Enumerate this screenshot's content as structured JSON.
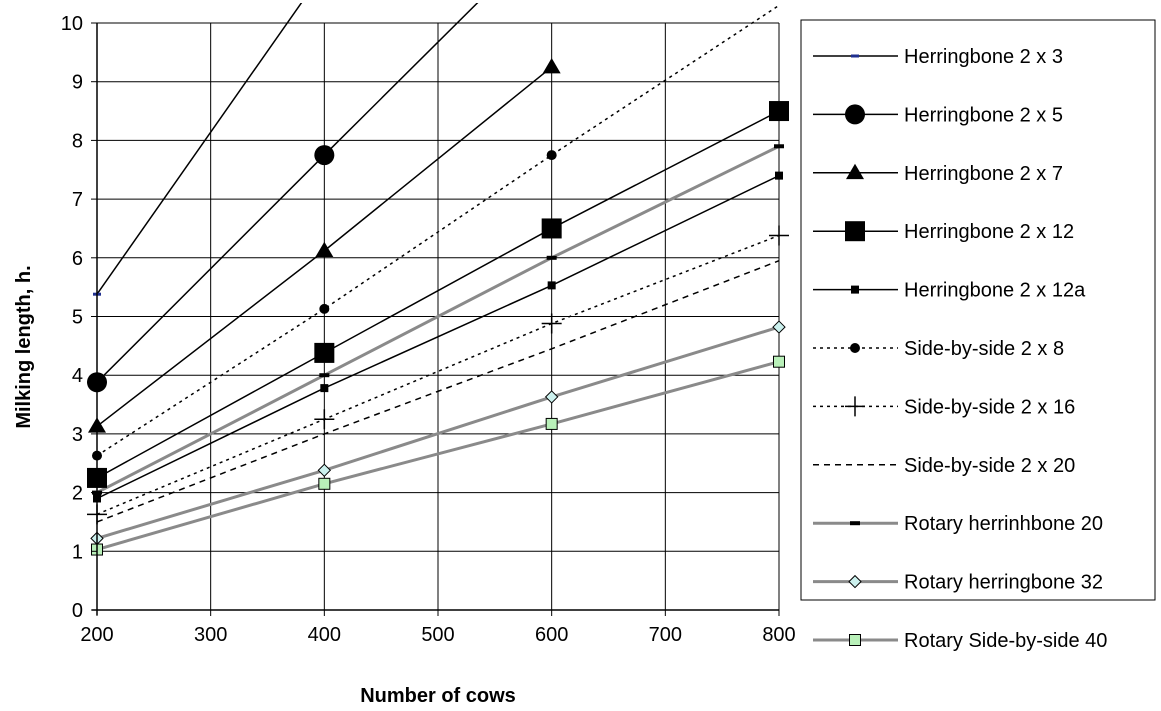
{
  "chart_data": {
    "type": "line",
    "title": "",
    "xlabel": "Number of cows",
    "ylabel": "Milking length, h.",
    "xlim": [
      200,
      800
    ],
    "ylim": [
      0,
      10
    ],
    "xticks": [
      "200",
      "300",
      "400",
      "500",
      "600",
      "700",
      "800"
    ],
    "yticks": [
      "0",
      "1",
      "2",
      "3",
      "4",
      "5",
      "6",
      "7",
      "8",
      "9",
      "10"
    ],
    "grid": true,
    "legend_position": "right",
    "series": [
      {
        "name": "Herringbone 2 x 3",
        "x": [
          200,
          400
        ],
        "y": [
          5.38,
          10.9
        ],
        "line": "solid",
        "color": "#000000",
        "marker": "dash",
        "marker_color": "#1f2f8f"
      },
      {
        "name": "Herringbone 2 x 5",
        "x": [
          200,
          400,
          600
        ],
        "y": [
          3.88,
          7.75,
          11.6
        ],
        "line": "solid",
        "color": "#000000",
        "marker": "circle-large"
      },
      {
        "name": "Herringbone 2 x 7",
        "x": [
          200,
          400,
          600
        ],
        "y": [
          3.13,
          6.12,
          9.25
        ],
        "line": "solid",
        "color": "#000000",
        "marker": "triangle"
      },
      {
        "name": "Herringbone 2 x 12",
        "x": [
          200,
          400,
          600,
          800
        ],
        "y": [
          2.25,
          4.38,
          6.5,
          8.5
        ],
        "line": "solid",
        "color": "#000000",
        "marker": "square-large"
      },
      {
        "name": "Herringbone 2 x 12a",
        "x": [
          200,
          400,
          600,
          800
        ],
        "y": [
          1.9,
          3.78,
          5.53,
          7.4
        ],
        "line": "solid",
        "color": "#000000",
        "marker": "square-small"
      },
      {
        "name": "Side-by-side 2 x 8",
        "x": [
          200,
          400,
          600,
          800
        ],
        "y": [
          2.63,
          5.13,
          7.75,
          10.3
        ],
        "line": "dotted",
        "color": "#000000",
        "marker": "circle-small"
      },
      {
        "name": "Side-by-side 2 x 16",
        "x": [
          200,
          400,
          600,
          800
        ],
        "y": [
          1.63,
          3.25,
          4.88,
          6.38
        ],
        "line": "dotted",
        "color": "#000000",
        "marker": "plus"
      },
      {
        "name": "Side-by-side 2 x 20",
        "x": [
          200,
          400,
          600,
          800
        ],
        "y": [
          1.5,
          3.0,
          4.45,
          5.95
        ],
        "line": "dashed",
        "color": "#000000",
        "marker": "none"
      },
      {
        "name": "Rotary herrinhbone 20",
        "x": [
          200,
          400,
          600,
          800
        ],
        "y": [
          2.0,
          4.0,
          6.0,
          7.9
        ],
        "line": "solid",
        "color": "#8a8a8a",
        "marker": "dash-black"
      },
      {
        "name": "Rotary herringbone 32",
        "x": [
          200,
          400,
          600,
          800
        ],
        "y": [
          1.22,
          2.38,
          3.63,
          4.82
        ],
        "line": "solid",
        "color": "#8a8a8a",
        "marker": "diamond"
      },
      {
        "name": "Rotary Side-by-side 40",
        "x": [
          200,
          400,
          600,
          800
        ],
        "y": [
          1.03,
          2.15,
          3.17,
          4.23
        ],
        "line": "solid",
        "color": "#8a8a8a",
        "marker": "square-green"
      }
    ]
  }
}
